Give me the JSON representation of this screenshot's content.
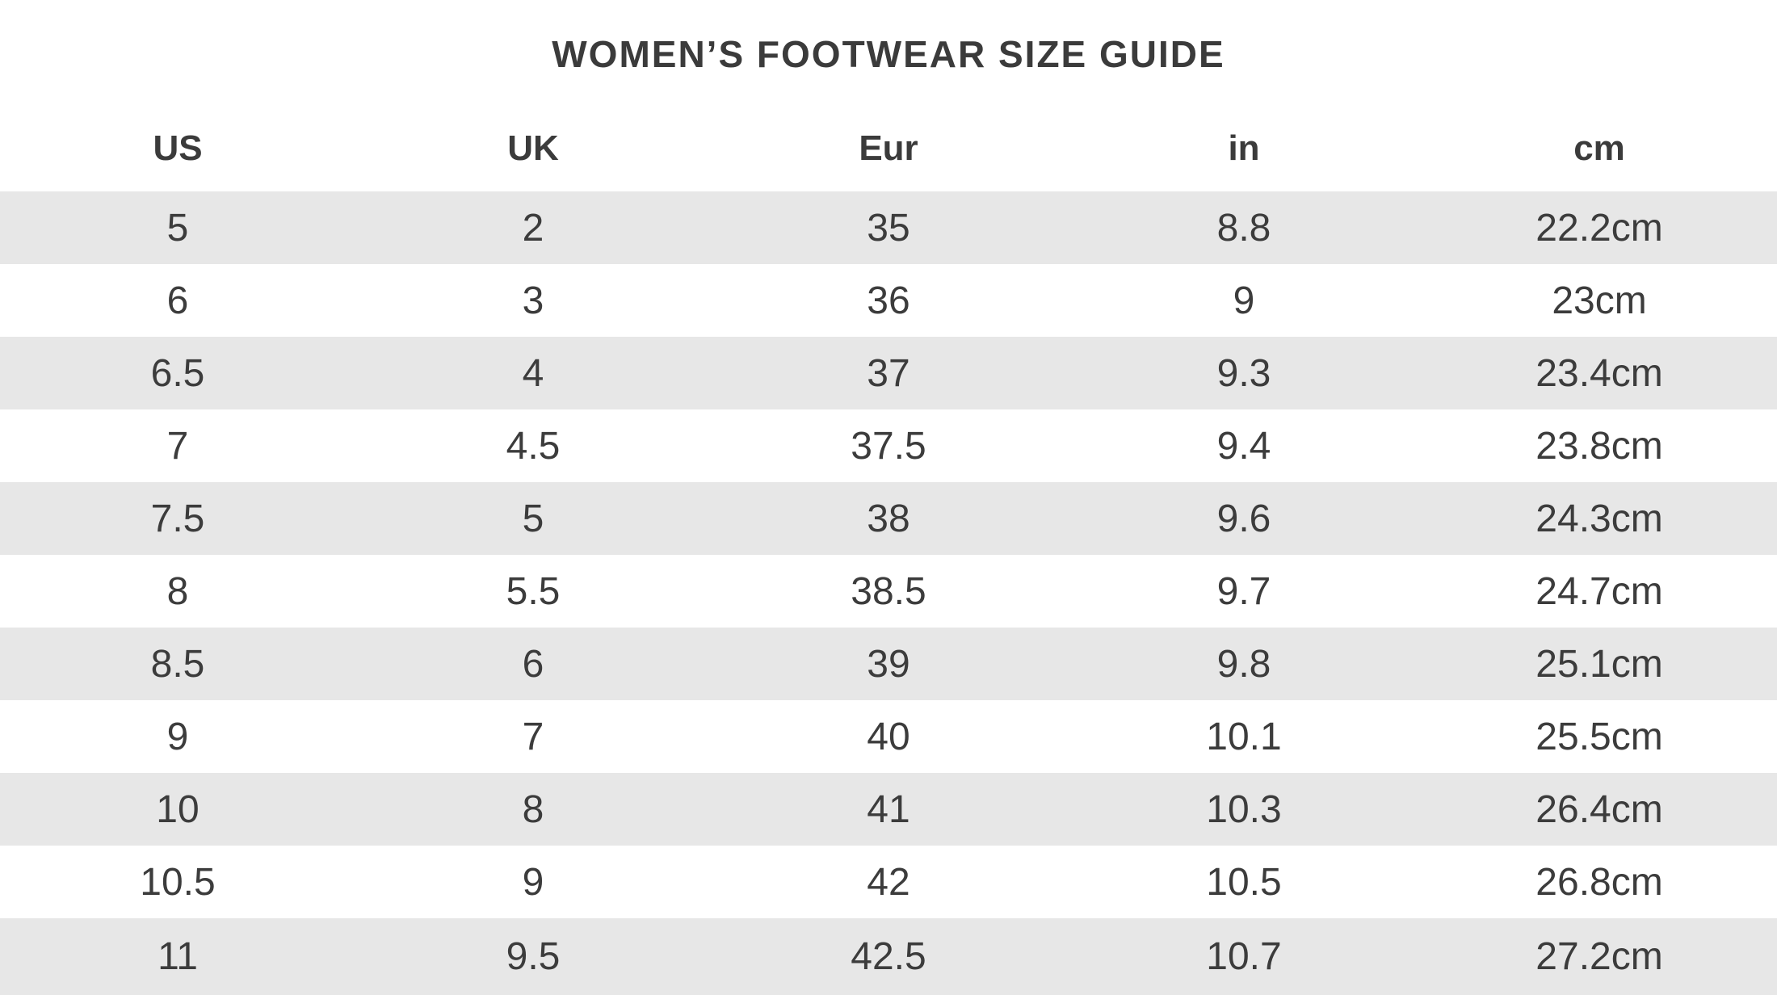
{
  "title": "WOMEN’S FOOTWEAR SIZE GUIDE",
  "table": {
    "columns": [
      "US",
      "UK",
      "Eur",
      "in",
      "cm"
    ],
    "rows": [
      [
        "5",
        "2",
        "35",
        "8.8",
        "22.2cm"
      ],
      [
        "6",
        "3",
        "36",
        "9",
        "23cm"
      ],
      [
        "6.5",
        "4",
        "37",
        "9.3",
        "23.4cm"
      ],
      [
        "7",
        "4.5",
        "37.5",
        "9.4",
        "23.8cm"
      ],
      [
        "7.5",
        "5",
        "38",
        "9.6",
        "24.3cm"
      ],
      [
        "8",
        "5.5",
        "38.5",
        "9.7",
        "24.7cm"
      ],
      [
        "8.5",
        "6",
        "39",
        "9.8",
        "25.1cm"
      ],
      [
        "9",
        "7",
        "40",
        "10.1",
        "25.5cm"
      ],
      [
        "10",
        "8",
        "41",
        "10.3",
        "26.4cm"
      ],
      [
        "10.5",
        "9",
        "42",
        "10.5",
        "26.8cm"
      ],
      [
        "11",
        "9.5",
        "42.5",
        "10.7",
        "27.2cm"
      ]
    ]
  },
  "colors": {
    "background": "#ffffff",
    "stripe": "#e7e7e7",
    "text": "#3c3c3c"
  }
}
